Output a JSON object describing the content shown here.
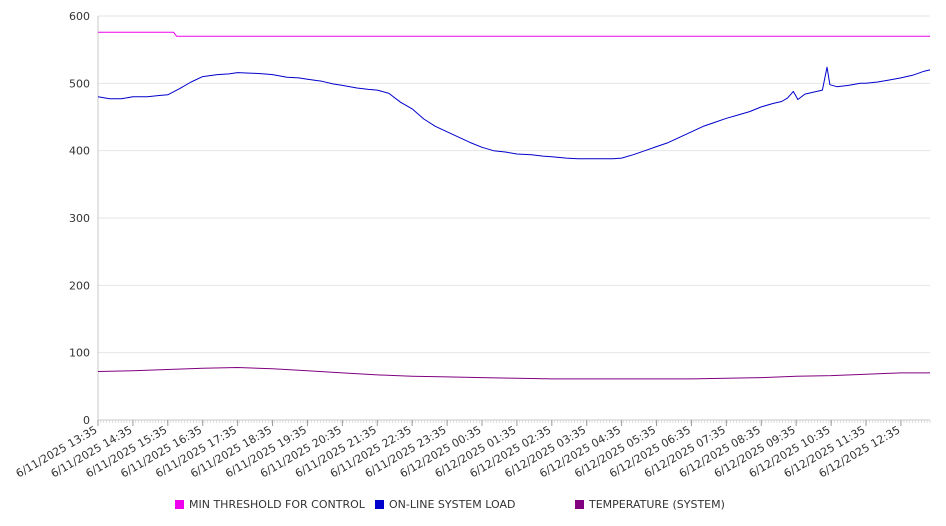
{
  "chart_data": {
    "type": "line",
    "title": "",
    "xlabel": "",
    "ylabel": "",
    "ylim": [
      0,
      600
    ],
    "yticks": [
      0,
      100,
      200,
      300,
      400,
      500,
      600
    ],
    "x_tick_labels": [
      "6/11/2025 13:35",
      "6/11/2025 14:35",
      "6/11/2025 15:35",
      "6/11/2025 16:35",
      "6/11/2025 17:35",
      "6/11/2025 18:35",
      "6/11/2025 19:35",
      "6/11/2025 20:35",
      "6/11/2025 21:35",
      "6/11/2025 22:35",
      "6/11/2025 23:35",
      "6/12/2025 00:35",
      "6/12/2025 01:35",
      "6/12/2025 02:35",
      "6/12/2025 03:35",
      "6/12/2025 04:35",
      "6/12/2025 05:35",
      "6/12/2025 06:35",
      "6/12/2025 07:35",
      "6/12/2025 08:35",
      "6/12/2025 09:35",
      "6/12/2025 10:35",
      "6/12/2025 11:35",
      "6/12/2025 12:35"
    ],
    "x_range": [
      "6/11/2025 13:35",
      "6/12/2025 13:25"
    ],
    "grid": "horizontal",
    "legend_position": "bottom",
    "series": [
      {
        "name": "MIN THRESHOLD FOR CONTROL",
        "color": "#ee00ee",
        "points": [
          [
            "6/11/2025 13:35",
            576
          ],
          [
            "6/11/2025 15:45",
            576
          ],
          [
            "6/11/2025 15:50",
            570
          ],
          [
            "6/12/2025 13:25",
            570
          ]
        ]
      },
      {
        "name": "ON-LINE SYSTEM LOAD",
        "color": "#0000cc",
        "points": [
          [
            "6/11/2025 13:35",
            480
          ],
          [
            "6/11/2025 13:55",
            477
          ],
          [
            "6/11/2025 14:15",
            477
          ],
          [
            "6/11/2025 14:35",
            480
          ],
          [
            "6/11/2025 15:00",
            480
          ],
          [
            "6/11/2025 15:20",
            482
          ],
          [
            "6/11/2025 15:35",
            483
          ],
          [
            "6/11/2025 15:55",
            492
          ],
          [
            "6/11/2025 16:15",
            502
          ],
          [
            "6/11/2025 16:35",
            510
          ],
          [
            "6/11/2025 17:00",
            513
          ],
          [
            "6/11/2025 17:20",
            514
          ],
          [
            "6/11/2025 17:35",
            516
          ],
          [
            "6/11/2025 18:00",
            515
          ],
          [
            "6/11/2025 18:20",
            514
          ],
          [
            "6/11/2025 18:35",
            513
          ],
          [
            "6/11/2025 19:00",
            509
          ],
          [
            "6/11/2025 19:20",
            508
          ],
          [
            "6/11/2025 19:35",
            506
          ],
          [
            "6/11/2025 20:00",
            503
          ],
          [
            "6/11/2025 20:20",
            499
          ],
          [
            "6/11/2025 20:35",
            497
          ],
          [
            "6/11/2025 21:00",
            493
          ],
          [
            "6/11/2025 21:20",
            491
          ],
          [
            "6/11/2025 21:35",
            490
          ],
          [
            "6/11/2025 21:55",
            485
          ],
          [
            "6/11/2025 22:15",
            472
          ],
          [
            "6/11/2025 22:35",
            462
          ],
          [
            "6/11/2025 22:55",
            447
          ],
          [
            "6/11/2025 23:15",
            436
          ],
          [
            "6/11/2025 23:35",
            428
          ],
          [
            "6/11/2025 23:55",
            420
          ],
          [
            "6/12/2025 00:15",
            412
          ],
          [
            "6/12/2025 00:35",
            405
          ],
          [
            "6/12/2025 00:55",
            400
          ],
          [
            "6/12/2025 01:15",
            398
          ],
          [
            "6/12/2025 01:35",
            395
          ],
          [
            "6/12/2025 02:00",
            394
          ],
          [
            "6/12/2025 02:20",
            392
          ],
          [
            "6/12/2025 02:35",
            391
          ],
          [
            "6/12/2025 03:00",
            389
          ],
          [
            "6/12/2025 03:20",
            388
          ],
          [
            "6/12/2025 03:35",
            388
          ],
          [
            "6/12/2025 04:00",
            388
          ],
          [
            "6/12/2025 04:20",
            388
          ],
          [
            "6/12/2025 04:35",
            389
          ],
          [
            "6/12/2025 04:55",
            394
          ],
          [
            "6/12/2025 05:15",
            400
          ],
          [
            "6/12/2025 05:35",
            406
          ],
          [
            "6/12/2025 05:55",
            412
          ],
          [
            "6/12/2025 06:15",
            420
          ],
          [
            "6/12/2025 06:35",
            428
          ],
          [
            "6/12/2025 06:55",
            436
          ],
          [
            "6/12/2025 07:15",
            442
          ],
          [
            "6/12/2025 07:35",
            448
          ],
          [
            "6/12/2025 07:55",
            453
          ],
          [
            "6/12/2025 08:15",
            458
          ],
          [
            "6/12/2025 08:35",
            465
          ],
          [
            "6/12/2025 08:55",
            470
          ],
          [
            "6/12/2025 09:10",
            473
          ],
          [
            "6/12/2025 09:20",
            478
          ],
          [
            "6/12/2025 09:30",
            488
          ],
          [
            "6/12/2025 09:38",
            476
          ],
          [
            "6/12/2025 09:50",
            484
          ],
          [
            "6/12/2025 10:05",
            487
          ],
          [
            "6/12/2025 10:20",
            490
          ],
          [
            "6/12/2025 10:28",
            524
          ],
          [
            "6/12/2025 10:33",
            498
          ],
          [
            "6/12/2025 10:45",
            495
          ],
          [
            "6/12/2025 11:05",
            497
          ],
          [
            "6/12/2025 11:25",
            500
          ],
          [
            "6/12/2025 11:35",
            500
          ],
          [
            "6/12/2025 11:55",
            502
          ],
          [
            "6/12/2025 12:15",
            505
          ],
          [
            "6/12/2025 12:35",
            508
          ],
          [
            "6/12/2025 12:55",
            512
          ],
          [
            "6/12/2025 13:15",
            518
          ],
          [
            "6/12/2025 13:25",
            520
          ]
        ]
      },
      {
        "name": "TEMPERATURE (SYSTEM)",
        "color": "#800080",
        "points": [
          [
            "6/11/2025 13:35",
            72
          ],
          [
            "6/11/2025 14:35",
            73
          ],
          [
            "6/11/2025 15:35",
            75
          ],
          [
            "6/11/2025 16:35",
            77
          ],
          [
            "6/11/2025 17:35",
            78
          ],
          [
            "6/11/2025 18:35",
            76
          ],
          [
            "6/11/2025 19:35",
            73
          ],
          [
            "6/11/2025 20:35",
            70
          ],
          [
            "6/11/2025 21:35",
            67
          ],
          [
            "6/11/2025 22:35",
            65
          ],
          [
            "6/11/2025 23:35",
            64
          ],
          [
            "6/12/2025 00:35",
            63
          ],
          [
            "6/12/2025 01:35",
            62
          ],
          [
            "6/12/2025 02:35",
            61
          ],
          [
            "6/12/2025 03:35",
            61
          ],
          [
            "6/12/2025 04:35",
            61
          ],
          [
            "6/12/2025 05:35",
            61
          ],
          [
            "6/12/2025 06:35",
            61
          ],
          [
            "6/12/2025 07:35",
            62
          ],
          [
            "6/12/2025 08:35",
            63
          ],
          [
            "6/12/2025 09:35",
            65
          ],
          [
            "6/12/2025 10:35",
            66
          ],
          [
            "6/12/2025 11:35",
            68
          ],
          [
            "6/12/2025 12:35",
            70
          ],
          [
            "6/12/2025 13:25",
            70
          ]
        ]
      }
    ]
  }
}
